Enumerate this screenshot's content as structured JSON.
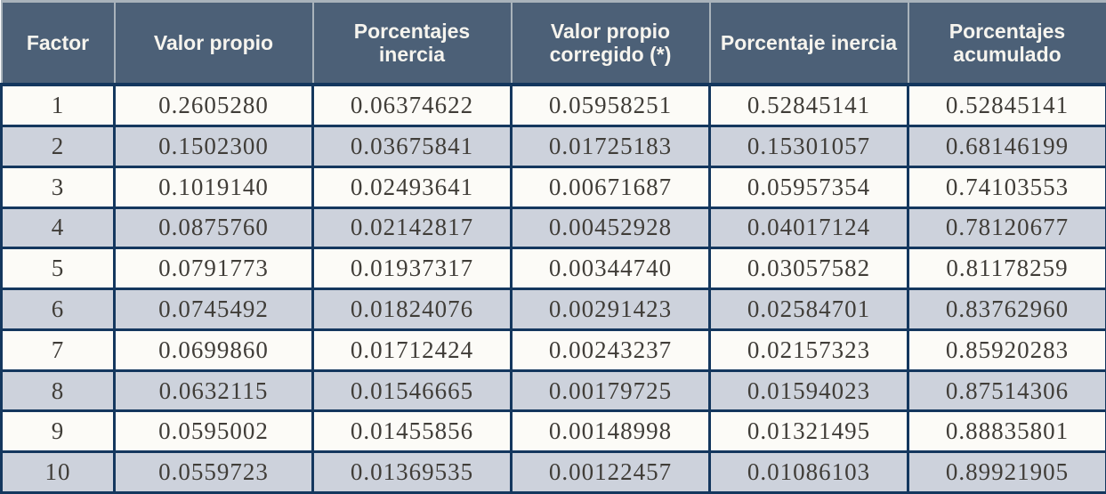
{
  "chart_data": {
    "type": "table",
    "columns": [
      "Factor",
      "Valor propio",
      "Porcentajes inercia",
      "Valor propio corregido (*)",
      "Porcentaje inercia",
      "Porcentajes acumulado"
    ],
    "rows": [
      [
        "1",
        "0.2605280",
        "0.06374622",
        "0.05958251",
        "0.52845141",
        "0.52845141"
      ],
      [
        "2",
        "0.1502300",
        "0.03675841",
        "0.01725183",
        "0.15301057",
        "0.68146199"
      ],
      [
        "3",
        "0.1019140",
        "0.02493641",
        "0.00671687",
        "0.05957354",
        "0.74103553"
      ],
      [
        "4",
        "0.0875760",
        "0.02142817",
        "0.00452928",
        "0.04017124",
        "0.78120677"
      ],
      [
        "5",
        "0.0791773",
        "0.01937317",
        "0.00344740",
        "0.03057582",
        "0.81178259"
      ],
      [
        "6",
        "0.0745492",
        "0.01824076",
        "0.00291423",
        "0.02584701",
        "0.83762960"
      ],
      [
        "7",
        "0.0699860",
        "0.01712424",
        "0.00243237",
        "0.02157323",
        "0.85920283"
      ],
      [
        "8",
        "0.0632115",
        "0.01546665",
        "0.00179725",
        "0.01594023",
        "0.87514306"
      ],
      [
        "9",
        "0.0595002",
        "0.01455856",
        "0.00148998",
        "0.01321495",
        "0.88835801"
      ],
      [
        "10",
        "0.0559723",
        "0.01369535",
        "0.00122457",
        "0.01086103",
        "0.89921905"
      ]
    ],
    "colors": {
      "header_bg": "#4c6077",
      "header_text": "#f6f4ee",
      "row_bg": "#fcfbf7",
      "stripe_bg": "#cdd2dc",
      "border_dark": "#14375e",
      "border_light": "#a9b3bb",
      "cell_text": "#403d38"
    },
    "layout": {
      "stripe": "even rows shaded",
      "grid": "dark navy borders in body, light gray separators in header"
    }
  }
}
